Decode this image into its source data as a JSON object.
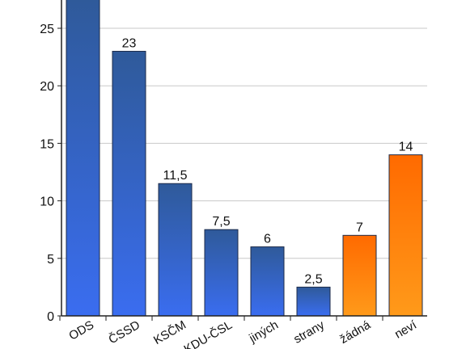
{
  "chart_data": {
    "type": "bar",
    "categories": [
      "ODS",
      "ČSSD",
      "KSČM",
      "KDU-ČSL",
      "jiných",
      "strany",
      "žádná",
      "neví"
    ],
    "values": [
      27.5,
      23,
      11.5,
      7.5,
      6,
      2.5,
      7,
      14
    ],
    "data_labels": [
      "",
      "23",
      "11,5",
      "7,5",
      "6",
      "2,5",
      "7",
      "14"
    ],
    "series_groups": [
      "blue",
      "blue",
      "blue",
      "blue",
      "blue",
      "blue",
      "orange",
      "orange"
    ],
    "ylim": [
      0,
      27.5
    ],
    "yticks": [
      0,
      5,
      10,
      15,
      20,
      25
    ],
    "grid": true,
    "title": "",
    "xlabel": "",
    "ylabel": "",
    "colors": {
      "blue_top": "#2f5a9a",
      "blue_bottom": "#3a6df0",
      "orange_top": "#ff6a00",
      "orange_bottom": "#ff9a1a",
      "bar_stroke": "#1d2b4a",
      "grid": "#c8c8c8",
      "axis": "#222222"
    }
  }
}
